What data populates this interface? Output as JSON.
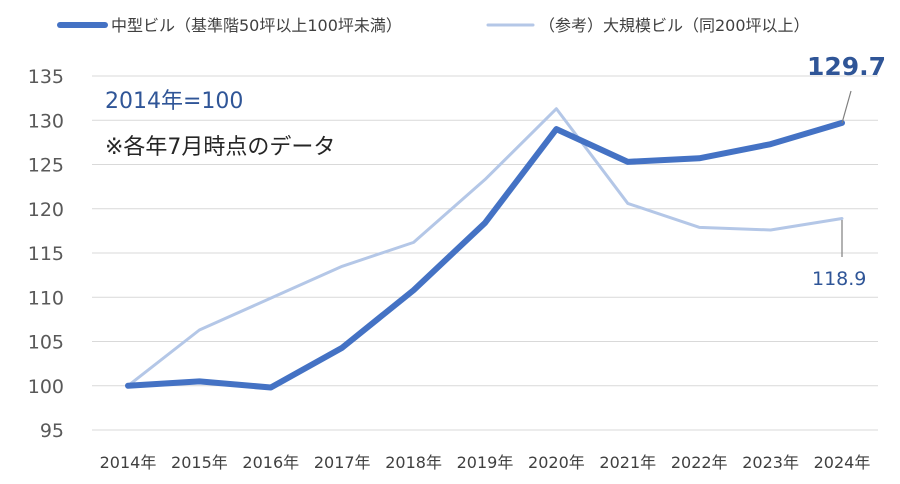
{
  "chart_data": {
    "type": "line",
    "categories": [
      "2014年",
      "2015年",
      "2016年",
      "2017年",
      "2018年",
      "2019年",
      "2020年",
      "2021年",
      "2022年",
      "2023年",
      "2024年"
    ],
    "series": [
      {
        "name": "中型ビル（基準階50坪以上100坪未満）",
        "color": "#4472C4",
        "values": [
          100.0,
          100.5,
          99.8,
          104.3,
          110.8,
          118.4,
          129.0,
          125.3,
          125.7,
          127.3,
          129.7
        ],
        "end_label": "129.7"
      },
      {
        "name": "（参考）大規模ビル（同200坪以上）",
        "color": "#B4C7E7",
        "values": [
          100.0,
          106.3,
          109.9,
          113.5,
          116.2,
          123.3,
          131.3,
          120.6,
          117.9,
          117.6,
          118.9
        ],
        "end_label": "118.9"
      }
    ],
    "yticks": [
      "95",
      "100",
      "105",
      "110",
      "115",
      "120",
      "125",
      "130",
      "135"
    ],
    "ylim": [
      95,
      135
    ],
    "grid": true,
    "legend_position": "top",
    "annotations": [
      "2014年=100",
      "※各年7月時点のデータ"
    ]
  }
}
